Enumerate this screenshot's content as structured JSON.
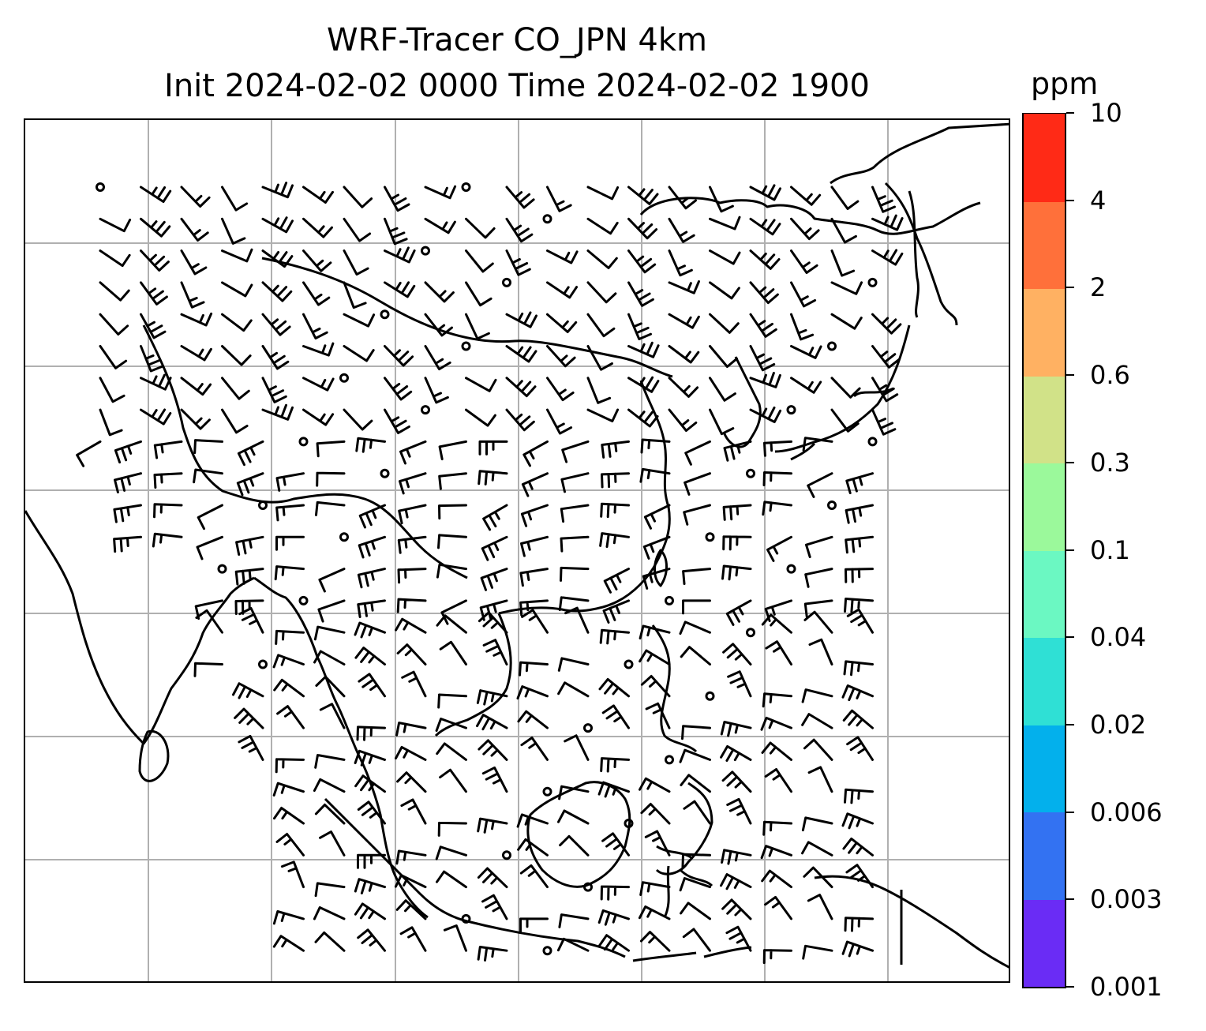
{
  "title": {
    "line1": "WRF-Tracer CO_JPN 4km",
    "line2": "Init 2024-02-02 0000 Time 2024-02-02 1900"
  },
  "colorbar": {
    "unit_label": "ppm",
    "ticks": [
      "0.001",
      "0.003",
      "0.006",
      "0.02",
      "0.04",
      "0.1",
      "0.3",
      "0.6",
      "2",
      "4",
      "10"
    ],
    "colors": [
      "#6a2cf5",
      "#3372f2",
      "#03b0ec",
      "#2fe0d5",
      "#6bf8c2",
      "#9bf99b",
      "#d1e288",
      "#ffb162",
      "#ff703a",
      "#ff2a16"
    ]
  },
  "map": {
    "gridlines": true,
    "coastline_color": "#000000",
    "grid_color": "#b0b0b0"
  }
}
